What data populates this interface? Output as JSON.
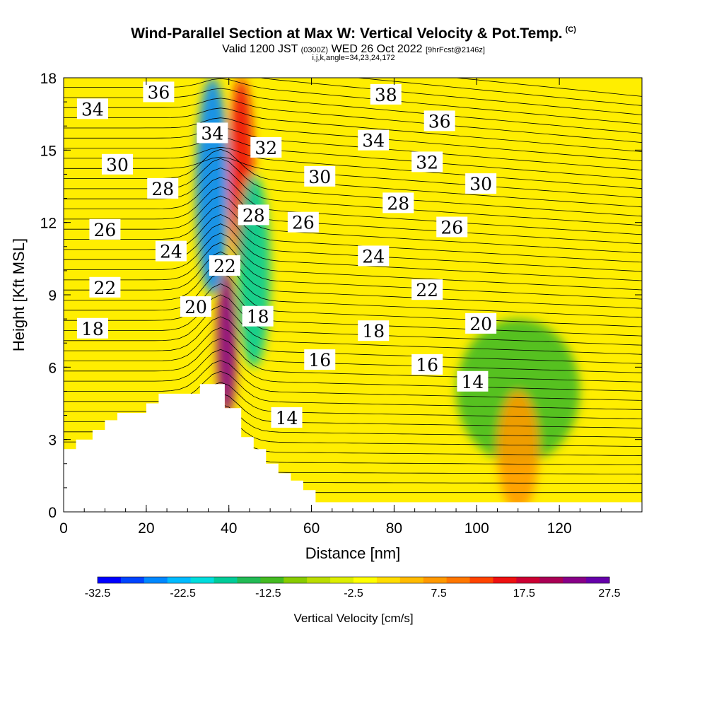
{
  "header": {
    "title": "Wind-Parallel Section at Max W: Vertical Velocity & Pot.Temp.",
    "copyright": "(C)",
    "valid_prefix": "Valid 1200 JST",
    "valid_utc": "(0300Z)",
    "valid_date": "WED 26 Oct 2022",
    "forecast": "[9hrFcst@2146z]",
    "indices": "i,j,k,angle=34,23,24,172"
  },
  "chart_data": {
    "type": "heatmap",
    "title": "Wind-Parallel Section at Max W: Vertical Velocity & Pot.Temp.",
    "xlabel": "Distance [nm]",
    "ylabel": "Height [Kft MSL]",
    "xlim": [
      0,
      140
    ],
    "ylim": [
      0,
      18
    ],
    "x_ticks": [
      "0",
      "20",
      "40",
      "60",
      "80",
      "100",
      "120"
    ],
    "y_ticks": [
      "0",
      "3",
      "6",
      "9",
      "12",
      "15",
      "18"
    ],
    "colorbar": {
      "title": "Vertical Velocity [cm/s]",
      "tick_labels": [
        "-32.5",
        "-22.5",
        "-12.5",
        "-2.5",
        "7.5",
        "17.5",
        "27.5"
      ],
      "colors": [
        "#0000ff",
        "#0044ff",
        "#0088ff",
        "#00bbff",
        "#00dddd",
        "#00cc99",
        "#22bb55",
        "#44bb22",
        "#88cc00",
        "#bbdd00",
        "#ddee00",
        "#ffff00",
        "#ffdd00",
        "#ffbb00",
        "#ff9900",
        "#ff7700",
        "#ff4400",
        "#ee1111",
        "#cc0033",
        "#aa0055",
        "#880088",
        "#6600aa"
      ]
    },
    "contour_labels": [
      {
        "text": "34",
        "x": 7,
        "y": 16.7
      },
      {
        "text": "36",
        "x": 23,
        "y": 17.4
      },
      {
        "text": "38",
        "x": 78,
        "y": 17.3
      },
      {
        "text": "36",
        "x": 91,
        "y": 16.2
      },
      {
        "text": "34",
        "x": 36,
        "y": 15.7
      },
      {
        "text": "34",
        "x": 75,
        "y": 15.4
      },
      {
        "text": "32",
        "x": 49,
        "y": 15.1
      },
      {
        "text": "32",
        "x": 88,
        "y": 14.5
      },
      {
        "text": "30",
        "x": 13,
        "y": 14.4
      },
      {
        "text": "30",
        "x": 62,
        "y": 13.9
      },
      {
        "text": "30",
        "x": 101,
        "y": 13.6
      },
      {
        "text": "28",
        "x": 24,
        "y": 13.4
      },
      {
        "text": "28",
        "x": 81,
        "y": 12.8
      },
      {
        "text": "28",
        "x": 46,
        "y": 12.3
      },
      {
        "text": "26",
        "x": 58,
        "y": 12.0
      },
      {
        "text": "26",
        "x": 94,
        "y": 11.8
      },
      {
        "text": "26",
        "x": 10,
        "y": 11.7
      },
      {
        "text": "24",
        "x": 26,
        "y": 10.8
      },
      {
        "text": "24",
        "x": 75,
        "y": 10.6
      },
      {
        "text": "22",
        "x": 39,
        "y": 10.2
      },
      {
        "text": "22",
        "x": 10,
        "y": 9.3
      },
      {
        "text": "22",
        "x": 88,
        "y": 9.2
      },
      {
        "text": "20",
        "x": 32,
        "y": 8.5
      },
      {
        "text": "18",
        "x": 47,
        "y": 8.1
      },
      {
        "text": "20",
        "x": 101,
        "y": 7.8
      },
      {
        "text": "18",
        "x": 7,
        "y": 7.6
      },
      {
        "text": "18",
        "x": 75,
        "y": 7.5
      },
      {
        "text": "16",
        "x": 62,
        "y": 6.3
      },
      {
        "text": "16",
        "x": 88,
        "y": 6.1
      },
      {
        "text": "14",
        "x": 99,
        "y": 5.4
      },
      {
        "text": "14",
        "x": 54,
        "y": 3.9
      }
    ],
    "regions": [
      {
        "name": "downdraft-upper-left",
        "w": -27,
        "x_range": [
          32,
          40
        ],
        "y_range": [
          9,
          18
        ]
      },
      {
        "name": "updraft-lee",
        "w": 25,
        "x_range": [
          37,
          42
        ],
        "y_range": [
          4,
          10
        ]
      },
      {
        "name": "updraft-column",
        "w": 15,
        "x_range": [
          40,
          46
        ],
        "y_range": [
          10,
          18
        ]
      },
      {
        "name": "downdraft-column",
        "w": -17,
        "x_range": [
          42,
          50
        ],
        "y_range": [
          6,
          14
        ]
      },
      {
        "name": "downdraft-right-low",
        "w": -12,
        "x_range": [
          95,
          125
        ],
        "y_range": [
          2,
          8
        ]
      },
      {
        "name": "updraft-right-low",
        "w": 8,
        "x_range": [
          105,
          115
        ],
        "y_range": [
          0,
          5
        ]
      }
    ],
    "terrain_profile": [
      [
        0,
        2.6
      ],
      [
        3,
        2.6
      ],
      [
        3,
        3.0
      ],
      [
        7,
        3.0
      ],
      [
        7,
        3.4
      ],
      [
        10,
        3.4
      ],
      [
        10,
        3.8
      ],
      [
        13,
        3.8
      ],
      [
        13,
        4.1
      ],
      [
        20,
        4.1
      ],
      [
        20,
        4.5
      ],
      [
        23,
        4.5
      ],
      [
        23,
        4.9
      ],
      [
        33,
        4.9
      ],
      [
        33,
        5.3
      ],
      [
        39,
        5.3
      ],
      [
        39,
        4.3
      ],
      [
        43,
        4.3
      ],
      [
        43,
        3.1
      ],
      [
        46,
        3.1
      ],
      [
        46,
        2.6
      ],
      [
        49,
        2.6
      ],
      [
        49,
        2.0
      ],
      [
        52,
        2.0
      ],
      [
        52,
        1.6
      ],
      [
        55,
        1.6
      ],
      [
        55,
        1.3
      ],
      [
        58,
        1.3
      ],
      [
        58,
        0.9
      ],
      [
        61,
        0.9
      ],
      [
        61,
        0.4
      ],
      [
        140,
        0.4
      ]
    ]
  }
}
